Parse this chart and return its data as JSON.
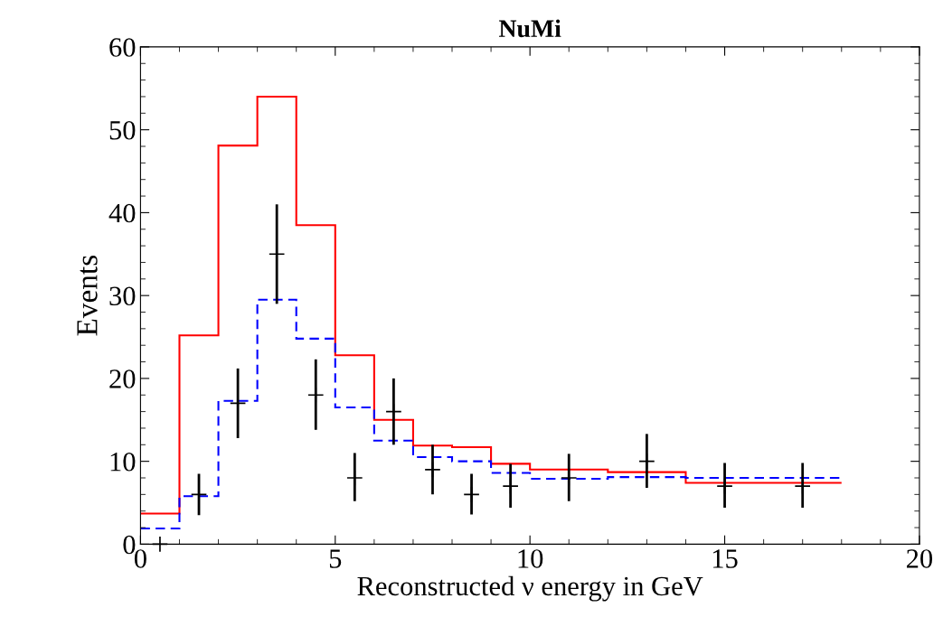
{
  "chart_data": {
    "type": "histogram",
    "title": "NuMi",
    "xlabel": "Reconstructed ν energy in GeV",
    "ylabel": "Events",
    "bins": [
      0,
      1,
      2,
      3,
      4,
      5,
      6,
      7,
      8,
      9,
      10,
      12,
      14,
      18
    ],
    "series": [
      {
        "color": "#ff0000",
        "line_style": "solid",
        "values": [
          3.7,
          25.2,
          48.1,
          54,
          38.5,
          22.8,
          15,
          11.9,
          11.7,
          9.7,
          9.0,
          8.7,
          7.4
        ]
      },
      {
        "color": "#0000ff",
        "line_style": "dashed",
        "values": [
          1.9,
          5.8,
          17.3,
          29.5,
          24.8,
          16.5,
          12.5,
          10.5,
          10.0,
          8.6,
          7.9,
          8.1,
          8.0
        ]
      },
      {
        "type": "scatter",
        "color": "#000000",
        "marker": "cross",
        "x": [
          0.5,
          1.5,
          2.5,
          3.5,
          4.5,
          5.5,
          6.5,
          7.5,
          8.5,
          9.5,
          11,
          13,
          15,
          17
        ],
        "values": [
          0,
          6,
          17,
          35,
          18,
          8,
          16,
          9,
          6,
          7,
          8,
          10,
          7,
          7
        ],
        "errors": [
          null,
          [
            3.5,
            8.5
          ],
          [
            12.8,
            21.2
          ],
          [
            29,
            41
          ],
          [
            13.8,
            22.3
          ],
          [
            5.2,
            11
          ],
          [
            12,
            20
          ],
          [
            6,
            12
          ],
          [
            3.6,
            8.5
          ],
          [
            4.4,
            9.7
          ],
          [
            5.2,
            10.9
          ],
          [
            6.8,
            13.3
          ],
          [
            4.4,
            9.8
          ],
          [
            4.4,
            9.8
          ]
        ]
      }
    ],
    "xlim": [
      0,
      20
    ],
    "ylim": [
      0,
      60
    ],
    "xticks": [
      0,
      5,
      10,
      15,
      20
    ],
    "yticks": [
      0,
      10,
      20,
      30,
      40,
      50,
      60
    ],
    "grid": false,
    "legend": false
  }
}
